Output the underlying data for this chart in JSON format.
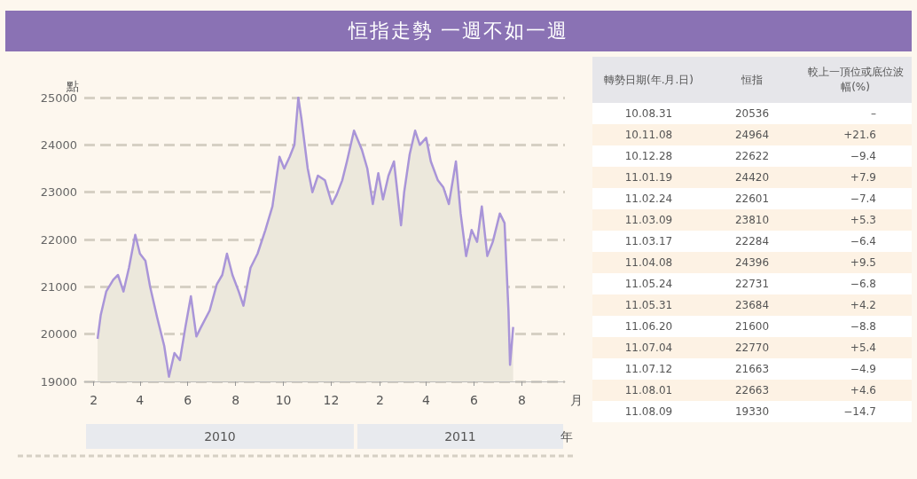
{
  "chart_data": [
    {
      "type": "area",
      "title": "恒指走勢 一週不如一週",
      "xlabel": "月",
      "ylabel": "點",
      "x": [
        "2010-02-06",
        "2010-02-10",
        "2010-02-17",
        "2010-02-26",
        "2010-03-04",
        "2010-03-11",
        "2010-03-18",
        "2010-03-26",
        "2010-04-01",
        "2010-04-08",
        "2010-04-14",
        "2010-04-23",
        "2010-05-02",
        "2010-05-08",
        "2010-05-15",
        "2010-05-22",
        "2010-05-29",
        "2010-06-05",
        "2010-06-12",
        "2010-06-18",
        "2010-06-29",
        "2010-07-08",
        "2010-07-15",
        "2010-07-21",
        "2010-07-28",
        "2010-08-05",
        "2010-08-11",
        "2010-08-20",
        "2010-08-29",
        "2010-09-08",
        "2010-09-17",
        "2010-09-26",
        "2010-10-02",
        "2010-10-09",
        "2010-10-15",
        "2010-10-20",
        "2010-10-24",
        "2010-11-01",
        "2010-11-07",
        "2010-11-14",
        "2010-11-23",
        "2010-12-02",
        "2010-12-08",
        "2010-12-15",
        "2010-12-21",
        "2010-12-30",
        "2011-01-09",
        "2011-01-16",
        "2011-01-23",
        "2011-01-30",
        "2011-02-05",
        "2011-02-12",
        "2011-02-19",
        "2011-02-28",
        "2011-03-04",
        "2011-03-11",
        "2011-03-18",
        "2011-03-24",
        "2011-04-01",
        "2011-04-07",
        "2011-04-16",
        "2011-04-23",
        "2011-04-30",
        "2011-05-09",
        "2011-05-15",
        "2011-05-22",
        "2011-05-29",
        "2011-06-05",
        "2011-06-11",
        "2011-06-18",
        "2011-06-25",
        "2011-07-04",
        "2011-07-10",
        "2011-07-15",
        "2011-07-17",
        "2011-07-21"
      ],
      "series": [
        {
          "color": "#a995d8",
          "values": [
            19900,
            20400,
            20900,
            21150,
            21250,
            20900,
            21400,
            22100,
            21700,
            21550,
            21000,
            20350,
            19750,
            19100,
            19600,
            19450,
            20150,
            20800,
            19950,
            20150,
            20500,
            21050,
            21250,
            21700,
            21250,
            20900,
            20600,
            21400,
            21700,
            22200,
            22700,
            23750,
            23500,
            23750,
            24000,
            25000,
            24550,
            23500,
            23000,
            23350,
            23250,
            22750,
            22950,
            23250,
            23650,
            24300,
            23900,
            23500,
            22750,
            23400,
            22850,
            23350,
            23650,
            22300,
            23000,
            23800,
            24300,
            24000,
            24150,
            23650,
            23250,
            23100,
            22750,
            23650,
            22550,
            21650,
            22200,
            21950,
            22700,
            21650,
            21950,
            22550,
            22350,
            20500,
            19350,
            20150
          ]
        }
      ],
      "xlim": [
        "2010-01-20",
        "2011-09-25"
      ],
      "xticks": [
        {
          "value": "2010-02-01",
          "label": "2"
        },
        {
          "value": "2010-04-01",
          "label": "4"
        },
        {
          "value": "2010-06-01",
          "label": "6"
        },
        {
          "value": "2010-08-01",
          "label": "8"
        },
        {
          "value": "2010-10-01",
          "label": "10"
        },
        {
          "value": "2010-12-01",
          "label": "12"
        },
        {
          "value": "2011-02-01",
          "label": "2"
        },
        {
          "value": "2011-04-01",
          "label": "4"
        },
        {
          "value": "2011-06-01",
          "label": "6"
        },
        {
          "value": "2011-08-01",
          "label": "8"
        }
      ],
      "ylim": [
        19000,
        25000
      ],
      "yticks": [
        19000,
        20000,
        21000,
        22000,
        23000,
        24000,
        25000
      ],
      "grid": "y",
      "marker": "none",
      "annotations": [
        "2010",
        "2011",
        "年"
      ]
    },
    {
      "type": "other",
      "categories": [
        "轉勢日期(年.月.日)",
        "恒指",
        "較上一頂位或底位波幅(%)"
      ],
      "cell_labels": [
        [
          "10.08.31",
          "20536",
          "–"
        ],
        [
          "10.11.08",
          "24964",
          "+21.6"
        ],
        [
          "10.12.28",
          "22622",
          "−9.4"
        ],
        [
          "11.01.19",
          "24420",
          "+7.9"
        ],
        [
          "11.02.24",
          "22601",
          "−7.4"
        ],
        [
          "11.03.09",
          "23810",
          "+5.3"
        ],
        [
          "11.03.17",
          "22284",
          "−6.4"
        ],
        [
          "11.04.08",
          "24396",
          "+9.5"
        ],
        [
          "11.05.24",
          "22731",
          "−6.8"
        ],
        [
          "11.05.31",
          "23684",
          "+4.2"
        ],
        [
          "11.06.20",
          "21600",
          "−8.8"
        ],
        [
          "11.07.04",
          "22770",
          "+5.4"
        ],
        [
          "11.07.12",
          "21663",
          "−4.9"
        ],
        [
          "11.08.01",
          "22663",
          "+4.6"
        ],
        [
          "11.08.09",
          "19330",
          "−14.7"
        ]
      ]
    }
  ]
}
